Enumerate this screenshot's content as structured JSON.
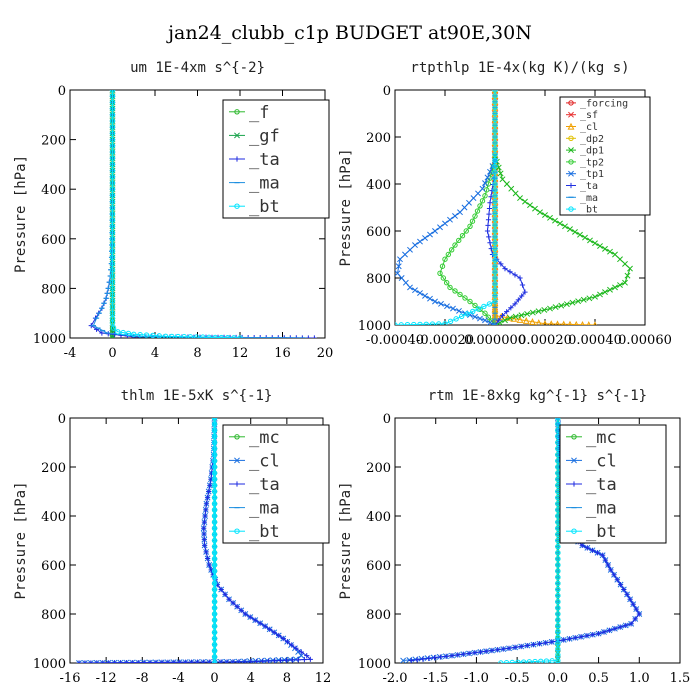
{
  "figure_title": "jan24_clubb_c1p  BUDGET at90E,30N",
  "chart_data": [
    {
      "type": "line",
      "title": "um  1E-4xm s^{-2}",
      "ylabel": "Pressure [hPa]",
      "xlim": [
        -4,
        20
      ],
      "ylim": [
        1000,
        0
      ],
      "x_ticks": [
        "-4",
        "0",
        "4",
        "8",
        "12",
        "16",
        "20"
      ],
      "y_ticks": [
        "0",
        "200",
        "400",
        "600",
        "800",
        "1000"
      ],
      "legend_location": "top-right",
      "series": [
        {
          "name": "_f",
          "color": "#2db82d",
          "marker": "o",
          "x": [
            0,
            0,
            0,
            0,
            0,
            0,
            0,
            0,
            0,
            0,
            0,
            0
          ],
          "y": [
            0,
            100,
            200,
            300,
            400,
            500,
            600,
            700,
            800,
            900,
            960,
            1000
          ]
        },
        {
          "name": "_gf",
          "color": "#17a24a",
          "marker": "x",
          "x": [
            0,
            0,
            0,
            0,
            0,
            0,
            0,
            0,
            0,
            0,
            0,
            0
          ],
          "y": [
            0,
            100,
            200,
            300,
            400,
            500,
            600,
            700,
            800,
            900,
            960,
            1000
          ]
        },
        {
          "name": "_ta",
          "color": "#1e2ae0",
          "marker": "+",
          "x": [
            0,
            0,
            0,
            -0.05,
            -0.1,
            -0.2,
            -0.4,
            -0.6,
            -1.0,
            -1.6,
            -2.0,
            -1.0,
            2.0,
            19.0
          ],
          "y": [
            0,
            200,
            400,
            600,
            700,
            750,
            800,
            840,
            880,
            920,
            950,
            980,
            995,
            1000
          ]
        },
        {
          "name": "_ma",
          "color": "#1e8fe0",
          "marker": "-",
          "x": [
            0,
            0,
            0,
            -0.05,
            -0.1,
            -0.2,
            -0.4,
            -0.6,
            -1.0,
            -1.5,
            -1.8,
            -0.5,
            3.0,
            18.0
          ],
          "y": [
            0,
            200,
            400,
            600,
            700,
            750,
            800,
            840,
            880,
            920,
            950,
            980,
            995,
            1000
          ]
        },
        {
          "name": "_bt",
          "color": "#00e5ff",
          "marker": "o",
          "x": [
            0,
            0,
            0,
            0,
            0,
            0,
            0,
            0.1,
            0.5,
            2.0,
            5.0,
            12.0
          ],
          "y": [
            0,
            200,
            400,
            600,
            800,
            900,
            940,
            960,
            975,
            985,
            993,
            1000
          ]
        }
      ]
    },
    {
      "type": "line",
      "title": "rtpthlp  1E-4x(kg K)/(kg s)",
      "ylabel": "Pressure [hPa]",
      "xlim": [
        -0.0004,
        0.0006
      ],
      "ylim": [
        1000,
        0
      ],
      "x_ticks": [
        "-0.00040",
        "-0.00020",
        "0.000000",
        "0.00020",
        "0.00040",
        "0.00060"
      ],
      "y_ticks": [
        "0",
        "200",
        "400",
        "600",
        "800",
        "1000"
      ],
      "legend_location": "top-right",
      "series": [
        {
          "name": "_forcing",
          "color": "#e02020",
          "marker": "o",
          "x": [
            0,
            0,
            0,
            0,
            0,
            0,
            0,
            0,
            0,
            0,
            0
          ],
          "y": [
            0,
            100,
            200,
            300,
            400,
            500,
            600,
            700,
            800,
            900,
            1000
          ]
        },
        {
          "name": "_sf",
          "color": "#e83030",
          "marker": "x",
          "x": [
            0,
            0,
            0,
            0,
            0,
            0,
            0,
            0,
            0,
            0,
            0
          ],
          "y": [
            0,
            100,
            200,
            300,
            400,
            500,
            600,
            700,
            800,
            900,
            1000
          ]
        },
        {
          "name": "_cl",
          "color": "#f0a000",
          "marker": "^",
          "x": [
            0,
            0,
            0,
            0,
            0,
            0,
            0.0002,
            0.0004
          ],
          "y": [
            0,
            200,
            400,
            600,
            800,
            960,
            995,
            1000
          ]
        },
        {
          "name": "_dp2",
          "color": "#e0c000",
          "marker": "o",
          "x": [
            0,
            0,
            0,
            0,
            0,
            0,
            0
          ],
          "y": [
            0,
            200,
            400,
            600,
            800,
            900,
            1000
          ]
        },
        {
          "name": "_dp1",
          "color": "#1db81d",
          "marker": "x",
          "x": [
            0,
            3e-05,
            0.0001,
            0.00018,
            0.00028,
            0.00038,
            0.00048,
            0.00054,
            0.00052,
            0.0004,
            0.00022,
            6e-05,
            0
          ],
          "y": [
            280,
            380,
            460,
            520,
            580,
            640,
            700,
            760,
            820,
            880,
            930,
            970,
            1000
          ]
        },
        {
          "name": "_tp2",
          "color": "#33cc33",
          "marker": "o",
          "x": [
            0,
            -4e-05,
            -0.0001,
            -0.00016,
            -0.0002,
            -0.00022,
            -0.00018,
            -0.0001,
            -4e-05,
            0
          ],
          "y": [
            300,
            450,
            580,
            660,
            720,
            780,
            840,
            900,
            950,
            1000
          ]
        },
        {
          "name": "_tp1",
          "color": "#1a6fe0",
          "marker": "x",
          "x": [
            0,
            -5e-05,
            -0.00014,
            -0.00024,
            -0.00032,
            -0.00038,
            -0.00039,
            -0.00034,
            -0.00024,
            -0.00012,
            -4e-05,
            0
          ],
          "y": [
            300,
            420,
            520,
            600,
            660,
            720,
            780,
            840,
            900,
            950,
            980,
            1000
          ]
        },
        {
          "name": "_ta",
          "color": "#2030e0",
          "marker": "+",
          "x": [
            0,
            -2e-05,
            -3e-05,
            -1e-05,
            4e-05,
            0.0001,
            0.00012,
            8e-05,
            3e-05,
            0
          ],
          "y": [
            350,
            480,
            600,
            700,
            760,
            800,
            860,
            910,
            960,
            1000
          ]
        },
        {
          "name": "_ma",
          "color": "#2090e0",
          "marker": "-",
          "x": [
            0,
            0,
            0,
            0,
            0,
            0
          ],
          "y": [
            0,
            200,
            400,
            600,
            800,
            1000
          ]
        },
        {
          "name": "_bt",
          "color": "#00e5ff",
          "marker": "o",
          "x": [
            0,
            0,
            0,
            0,
            0,
            -0.0002,
            -0.0004
          ],
          "y": [
            0,
            200,
            400,
            600,
            900,
            995,
            1000
          ]
        }
      ]
    },
    {
      "type": "line",
      "title": "thlm  1E-5xK s^{-1}",
      "ylabel": "Pressure [hPa]",
      "xlim": [
        -16,
        12
      ],
      "ylim": [
        1000,
        0
      ],
      "x_ticks": [
        "-16",
        "-12",
        "-8",
        "-4",
        "0",
        "4",
        "8",
        "12"
      ],
      "y_ticks": [
        "0",
        "200",
        "400",
        "600",
        "800",
        "1000"
      ],
      "legend_location": "top-right",
      "series": [
        {
          "name": "_mc",
          "color": "#2db82d",
          "marker": "o",
          "x": [
            0,
            0,
            0,
            0,
            0,
            0,
            0,
            0,
            0,
            0,
            0
          ],
          "y": [
            0,
            100,
            200,
            300,
            400,
            500,
            600,
            700,
            800,
            900,
            1000
          ]
        },
        {
          "name": "_cl",
          "color": "#1a6fe0",
          "marker": "x",
          "x": [
            0,
            -0.1,
            -0.4,
            -0.9,
            -1.2,
            -1.1,
            -0.6,
            0.3,
            1.6,
            3.4,
            5.6,
            7.6,
            8.9,
            9.6,
            9.0,
            2.0,
            -15.0
          ],
          "y": [
            0,
            150,
            250,
            350,
            450,
            520,
            600,
            680,
            740,
            800,
            850,
            900,
            940,
            970,
            985,
            995,
            1000
          ]
        },
        {
          "name": "_ta",
          "color": "#1e2ae0",
          "marker": "+",
          "x": [
            0,
            -0.1,
            -0.4,
            -0.9,
            -1.2,
            -1.1,
            -0.6,
            0.3,
            1.6,
            3.4,
            5.6,
            7.6,
            9.0,
            10.2,
            10.6,
            4.0,
            -15.0
          ],
          "y": [
            0,
            150,
            250,
            350,
            450,
            520,
            600,
            680,
            740,
            800,
            850,
            900,
            940,
            970,
            985,
            995,
            1000
          ]
        },
        {
          "name": "_ma",
          "color": "#1e8fe0",
          "marker": "-",
          "x": [
            0,
            0,
            0,
            0,
            0,
            0
          ],
          "y": [
            0,
            200,
            400,
            600,
            800,
            1000
          ]
        },
        {
          "name": "_bt",
          "color": "#00e5ff",
          "marker": "o",
          "x": [
            0,
            0,
            0,
            0,
            0,
            0
          ],
          "y": [
            0,
            200,
            400,
            600,
            800,
            1000
          ]
        }
      ]
    },
    {
      "type": "line",
      "title": "rtm  1E-8xkg kg^{-1} s^{-1}",
      "ylabel": "Pressure [hPa]",
      "xlim": [
        -2.0,
        1.5
      ],
      "ylim": [
        1000,
        0
      ],
      "x_ticks": [
        "-2.0",
        "-1.5",
        "-1.0",
        "-0.5",
        "0.0",
        "0.5",
        "1.0",
        "1.5"
      ],
      "y_ticks": [
        "0",
        "200",
        "400",
        "600",
        "800",
        "1000"
      ],
      "legend_location": "top-right",
      "series": [
        {
          "name": "_mc",
          "color": "#2db82d",
          "marker": "o",
          "x": [
            0,
            0,
            0,
            0,
            0,
            0,
            0,
            0,
            0,
            0,
            0
          ],
          "y": [
            0,
            100,
            200,
            300,
            400,
            500,
            600,
            700,
            800,
            900,
            1000
          ]
        },
        {
          "name": "_cl",
          "color": "#1a6fe0",
          "marker": "x",
          "x": [
            0,
            0.02,
            0.05,
            0.06,
            0.1,
            0.3,
            0.55,
            0.65,
            0.85,
            1.0,
            0.9,
            0.5,
            0,
            -0.6,
            -1.3,
            -1.9
          ],
          "y": [
            0,
            150,
            300,
            400,
            460,
            520,
            560,
            620,
            720,
            800,
            840,
            880,
            910,
            940,
            970,
            990
          ]
        },
        {
          "name": "_ta",
          "color": "#1e2ae0",
          "marker": "+",
          "x": [
            0,
            0.02,
            0.05,
            0.06,
            0.1,
            0.3,
            0.55,
            0.65,
            0.85,
            1.0,
            0.9,
            0.5,
            0,
            -0.6,
            -1.3,
            -1.8
          ],
          "y": [
            0,
            150,
            300,
            400,
            460,
            520,
            560,
            620,
            720,
            800,
            840,
            880,
            910,
            940,
            970,
            990
          ]
        },
        {
          "name": "_ma",
          "color": "#1e8fe0",
          "marker": "-",
          "x": [
            0,
            0,
            0,
            0,
            0,
            0
          ],
          "y": [
            0,
            200,
            400,
            600,
            800,
            1000
          ]
        },
        {
          "name": "_bt",
          "color": "#00e5ff",
          "marker": "o",
          "x": [
            0,
            0,
            0,
            0,
            0,
            0,
            -0.7
          ],
          "y": [
            0,
            200,
            400,
            600,
            800,
            990,
            1000
          ]
        }
      ]
    }
  ]
}
